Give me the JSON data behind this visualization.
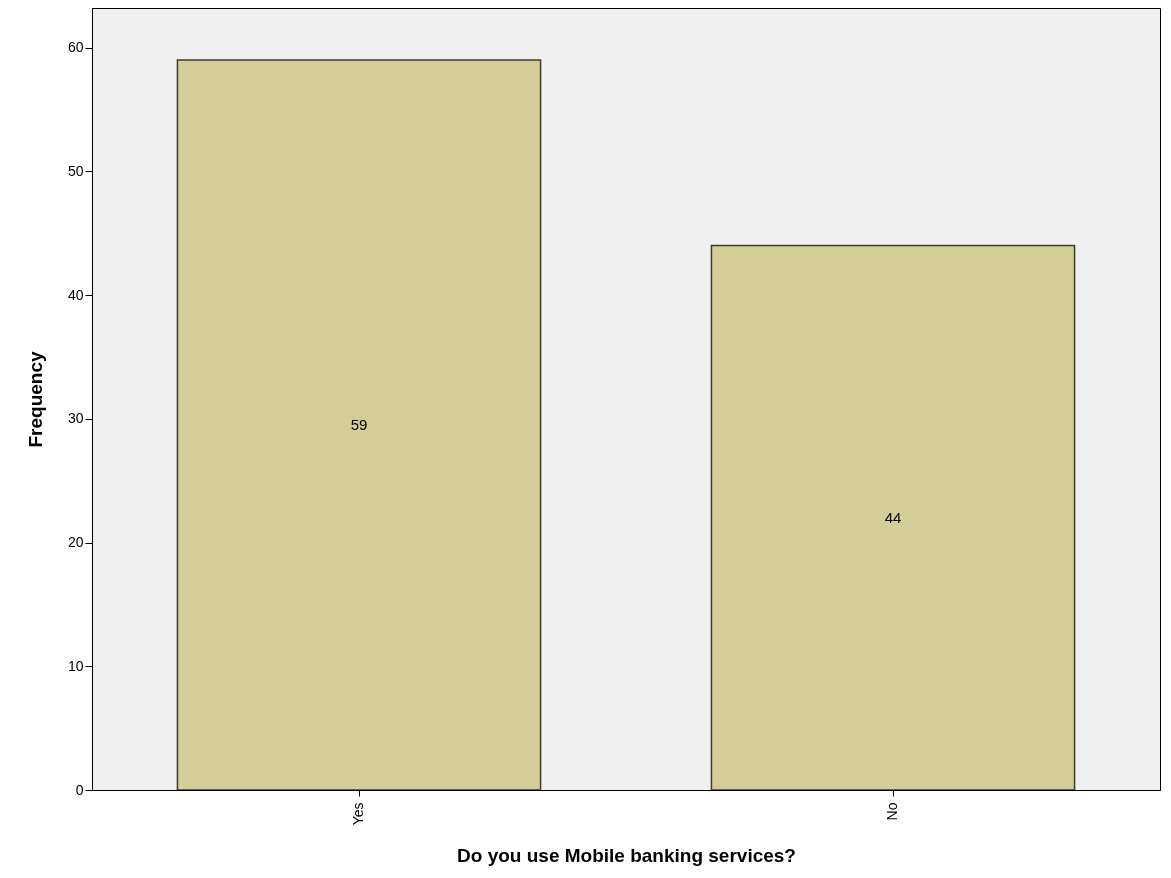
{
  "chart_data": {
    "type": "bar",
    "xlabel": "Do you use Mobile banking services?",
    "ylabel": "Frequency",
    "categories": [
      "Yes",
      "No"
    ],
    "values": [
      59,
      44
    ],
    "color": "#d3ce98",
    "ylim": [
      0,
      63.2
    ],
    "yticks": [
      0,
      10,
      20,
      30,
      40,
      50,
      60
    ],
    "data_labels": true
  }
}
